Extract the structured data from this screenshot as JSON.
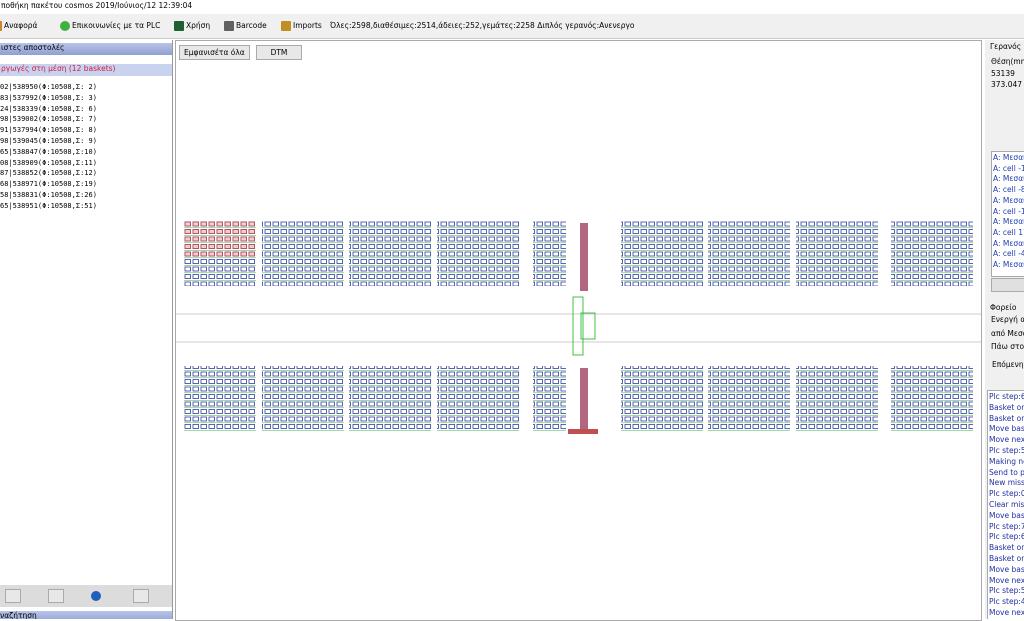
{
  "window": {
    "title": "ποθήκη πακέτου cosmos 2019/Ιούνιος/12 12:39:04"
  },
  "toolbar": {
    "items": [
      "Αναφορά",
      "Επικοινωνίες με τα PLC",
      "Χρήση",
      "Barcode",
      "Imports"
    ],
    "status": "Όλες:2598,διαθέσιμες:2514,άδειες:252,γεμάτες:2258  Διπλός γερανός:Ανενεργο"
  },
  "left": {
    "header": "ιστες αποστολές",
    "group": "ργωγές στη μέση (12 baskets)",
    "list": [
      "02|538950(Φ:10508,Σ: 2)",
      "83|537992(Φ:10508,Σ: 3)",
      "24|538339(Φ:10508,Σ: 6)",
      "98|539002(Φ:10508,Σ: 7)",
      "91|537994(Φ:10508,Σ: 8)",
      "98|539045(Φ:10508,Σ: 9)",
      "65|538847(Φ:10508,Σ:10)",
      "08|538909(Φ:10508,Σ:11)",
      "87|538852(Φ:10508,Σ:12)",
      "68|538971(Φ:10508,Σ:19)",
      "58|538831(Φ:10508,Σ:26)",
      "65|538951(Φ:10508,Σ:51)"
    ],
    "search": "ναζήτηση"
  },
  "center": {
    "buttons": [
      "Εμφανισέτα όλα",
      "DTM"
    ]
  },
  "right": {
    "crane": "Γερανός",
    "position_label": "Θέση(mm)",
    "position": "53139",
    "value": "373.047",
    "missions": [
      "A: Μεσαί",
      "A: cell -1",
      "A: Μεσαί",
      "A: cell -8",
      "A: Μεσαί",
      "A: cell -1",
      "A: Μεσαί",
      "A: cell 11",
      "A: Μεσαί",
      "A: cell -4",
      "A: Μεσαί"
    ],
    "trolley": "Φορείο",
    "trolley_lines": [
      "Ενεργή απ",
      "από Μεσαί",
      "Πάω στον",
      "Επόμενη α"
    ],
    "log": [
      "Plc step:6",
      "Basket on",
      "Basket on",
      "Move bask",
      "Move next",
      "Plc step:5",
      "Making ne",
      "Send to pl",
      "New missi",
      "Plc step:0",
      "Clear miss",
      "Move bask",
      "Plc step:7",
      "Plc step:6",
      "Basket on",
      "Basket on",
      "Move bask",
      "Move next",
      "Plc step:5",
      "Plc step:4",
      "Move next"
    ]
  }
}
